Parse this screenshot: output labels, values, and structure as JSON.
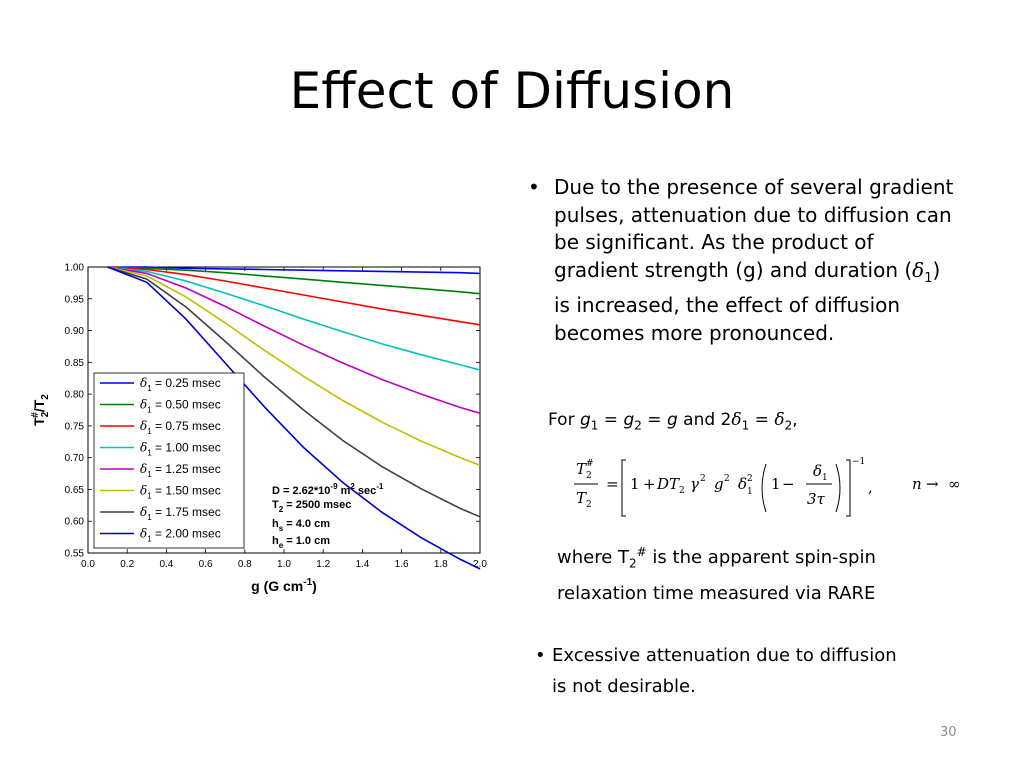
{
  "slide": {
    "title": "Effect of Diffusion",
    "bullet1": {
      "marker": "•",
      "line1": "Due to the presence of several gradient",
      "line2": "pulses, attenuation due to diffusion can",
      "line3": "be significant.   As the product of",
      "line4_pre": "gradient strength (g) and duration (",
      "delta": "δ",
      "sub1": "1",
      "line4_post": ")",
      "line5": "is increased, the effect of diffusion",
      "line6": "becomes more pronounced."
    },
    "for_line": {
      "pre": "For ",
      "g": "g",
      "sub1": "1",
      "eq1": " = ",
      "sub2": "2",
      "eq2": " = ",
      "and": " and 2",
      "delta": "δ",
      "eq3": " = ",
      "end": ","
    },
    "equation": {
      "T": "T",
      "hash": "#",
      "two": "2",
      "eq": "=",
      "one": "1",
      "plus": "+",
      "D": "D",
      "gamma": "γ",
      "g": "g",
      "delta": "δ",
      "minus": "−",
      "three_tau": "3τ",
      "neg1": "−1",
      "comma": ",",
      "n": "n",
      "arrow": "→",
      "inf": "∞"
    },
    "where": {
      "pre": "where T",
      "sub": "2",
      "sup": "#",
      "post": " is the apparent spin-spin",
      "line2": "relaxation time measured via RARE"
    },
    "bullet2": {
      "marker": "•",
      "line1": "Excessive attenuation due to diffusion",
      "line2": "is not desirable."
    },
    "page_number": "30"
  },
  "chart_data": {
    "type": "line",
    "x_range": [
      0,
      2.0
    ],
    "y_range": [
      0.55,
      1.0
    ],
    "x_ticks": [
      "0.0",
      "0.2",
      "0.4",
      "0.6",
      "0.8",
      "1.0",
      "1.2",
      "1.4",
      "1.6",
      "1.8",
      "2.0"
    ],
    "y_ticks": [
      "0.55",
      "0.60",
      "0.65",
      "0.70",
      "0.75",
      "0.80",
      "0.85",
      "0.90",
      "0.95",
      "1.00"
    ],
    "xlabel": {
      "pre": "g (G cm",
      "sup": "-1",
      "post": ")"
    },
    "ylabel": {
      "T": "T",
      "sub": "2",
      "sup": "#",
      "slash": "/T",
      "sub2": "2"
    },
    "grid": false,
    "legend_position": "bottom-left",
    "x": [
      0.1,
      0.3,
      0.5,
      0.7,
      0.9,
      1.1,
      1.3,
      1.5,
      1.7,
      1.9,
      2.0
    ],
    "series": [
      {
        "delta": "δ",
        "sub": "1",
        "name": " = 0.25 msec",
        "color": "#0000ff",
        "values": [
          1.0,
          1.0,
          0.998,
          0.997,
          0.996,
          0.995,
          0.994,
          0.993,
          0.992,
          0.991,
          0.99
        ]
      },
      {
        "delta": "δ",
        "sub": "1",
        "name": " = 0.50 msec",
        "color": "#008000",
        "values": [
          1.0,
          0.998,
          0.995,
          0.991,
          0.986,
          0.981,
          0.976,
          0.971,
          0.966,
          0.961,
          0.958
        ]
      },
      {
        "delta": "δ",
        "sub": "1",
        "name": " = 0.75 msec",
        "color": "#ff0000",
        "values": [
          1.0,
          0.996,
          0.988,
          0.978,
          0.967,
          0.956,
          0.945,
          0.934,
          0.924,
          0.914,
          0.909
        ]
      },
      {
        "delta": "δ",
        "sub": "1",
        "name": " = 1.00 msec",
        "color": "#00bfbf",
        "values": [
          1.0,
          0.993,
          0.978,
          0.959,
          0.939,
          0.918,
          0.898,
          0.879,
          0.862,
          0.846,
          0.838
        ]
      },
      {
        "delta": "δ",
        "sub": "1",
        "name": " = 1.25 msec",
        "color": "#bf00bf",
        "values": [
          1.0,
          0.99,
          0.967,
          0.938,
          0.907,
          0.877,
          0.849,
          0.823,
          0.8,
          0.779,
          0.77
        ]
      },
      {
        "delta": "δ",
        "sub": "1",
        "name": " = 1.50 msec",
        "color": "#bfbf00",
        "values": [
          1.0,
          0.986,
          0.953,
          0.912,
          0.869,
          0.828,
          0.79,
          0.756,
          0.726,
          0.7,
          0.688
        ]
      },
      {
        "delta": "δ",
        "sub": "1",
        "name": " = 1.75 msec",
        "color": "#404040",
        "values": [
          1.0,
          0.981,
          0.937,
          0.883,
          0.827,
          0.775,
          0.727,
          0.686,
          0.651,
          0.62,
          0.607
        ]
      },
      {
        "delta": "δ",
        "sub": "1",
        "name": " = 2.00 msec",
        "color": "#0000cc",
        "values": [
          1.0,
          0.976,
          0.918,
          0.849,
          0.78,
          0.716,
          0.661,
          0.614,
          0.574,
          0.54,
          0.525
        ]
      }
    ],
    "annotations": {
      "D": {
        "pre": "D = 2.62*10",
        "sup": "-9",
        "mid": " m",
        "sup2": "2",
        "post": " sec",
        "sup3": "-1"
      },
      "T2": {
        "pre": "T",
        "sub": "2",
        "post": " = 2500 msec"
      },
      "hs": {
        "pre": "h",
        "sub": "s",
        "post": " = 4.0 cm"
      },
      "he": {
        "pre": "h",
        "sub": "e",
        "post": " = 1.0 cm"
      }
    }
  }
}
